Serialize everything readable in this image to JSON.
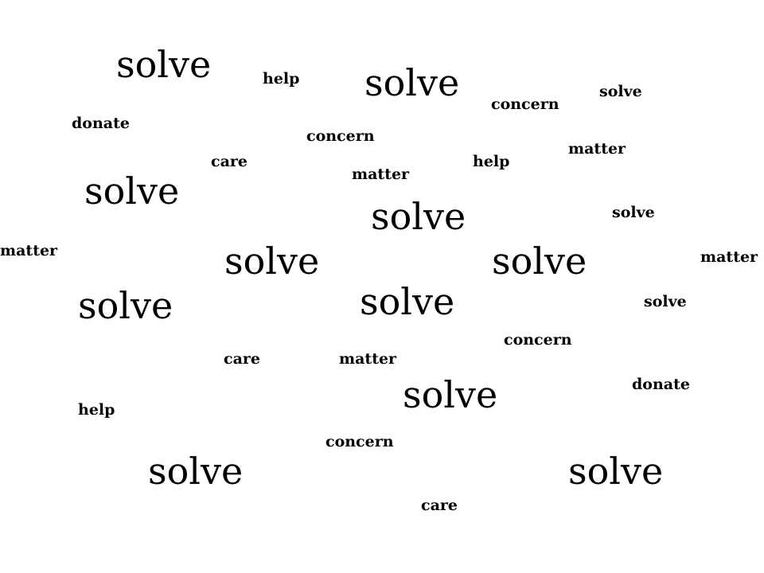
{
  "text_color": "#000000",
  "background_color": "#ffffff",
  "words": [
    {
      "text": "solve",
      "emphasis": "large"
    },
    {
      "text": "help",
      "emphasis": "small"
    },
    {
      "text": "solve",
      "emphasis": "large"
    },
    {
      "text": "concern",
      "emphasis": "small"
    },
    {
      "text": "solve",
      "emphasis": "small"
    },
    {
      "text": "donate",
      "emphasis": "small"
    },
    {
      "text": "concern",
      "emphasis": "small"
    },
    {
      "text": "matter",
      "emphasis": "small"
    },
    {
      "text": "care",
      "emphasis": "small"
    },
    {
      "text": "help",
      "emphasis": "small"
    },
    {
      "text": "matter",
      "emphasis": "small"
    },
    {
      "text": "solve",
      "emphasis": "large"
    },
    {
      "text": "solve",
      "emphasis": "large"
    },
    {
      "text": "solve",
      "emphasis": "small"
    },
    {
      "text": "matter",
      "emphasis": "small"
    },
    {
      "text": "solve",
      "emphasis": "large"
    },
    {
      "text": "solve",
      "emphasis": "large"
    },
    {
      "text": "matter",
      "emphasis": "small"
    },
    {
      "text": "solve",
      "emphasis": "large"
    },
    {
      "text": "solve",
      "emphasis": "large"
    },
    {
      "text": "solve",
      "emphasis": "small"
    },
    {
      "text": "concern",
      "emphasis": "small"
    },
    {
      "text": "care",
      "emphasis": "small"
    },
    {
      "text": "matter",
      "emphasis": "small"
    },
    {
      "text": "solve",
      "emphasis": "large"
    },
    {
      "text": "donate",
      "emphasis": "small"
    },
    {
      "text": "help",
      "emphasis": "small"
    },
    {
      "text": "concern",
      "emphasis": "small"
    },
    {
      "text": "solve",
      "emphasis": "large"
    },
    {
      "text": "solve",
      "emphasis": "large"
    },
    {
      "text": "care",
      "emphasis": "small"
    }
  ]
}
